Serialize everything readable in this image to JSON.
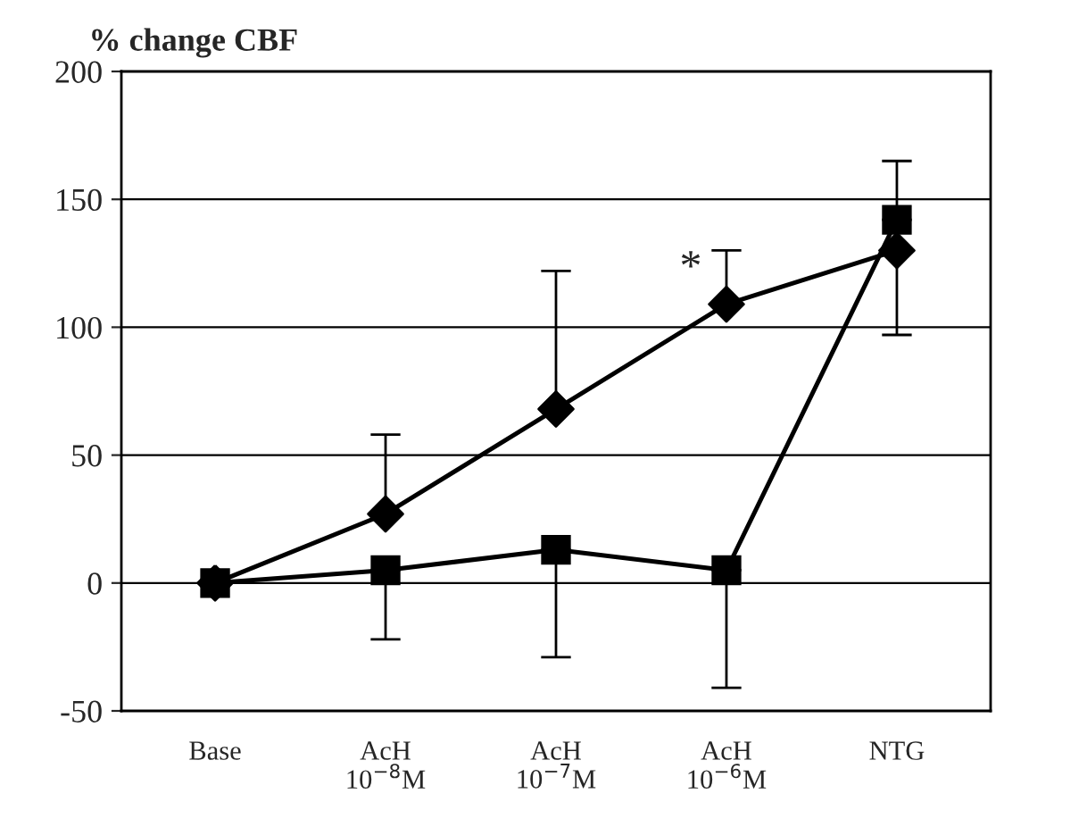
{
  "chart_data": {
    "type": "line",
    "title": "% change CBF",
    "categories": [
      "Base",
      "AcH\n10$^{−8}$M",
      "AcH\n10$^{−7}$M",
      "AcH\n10$^{−6}$M",
      "NTG"
    ],
    "series": [
      {
        "color": "#000000",
        "marker": "diamond",
        "values": [
          0,
          27,
          68,
          109,
          130
        ],
        "errors": [
          null,
          [
            27,
            58
          ],
          [
            68,
            122
          ],
          [
            109,
            130
          ],
          [
            97,
            130
          ]
        ]
      },
      {
        "color": "#000000",
        "marker": "square",
        "values": [
          0,
          5,
          13,
          5,
          142
        ],
        "errors": [
          null,
          [
            -22,
            5
          ],
          [
            -29,
            13
          ],
          [
            -41,
            5
          ],
          [
            142,
            165
          ]
        ]
      }
    ],
    "ylim": [
      -50,
      200
    ],
    "yticks": [
      -50,
      0,
      50,
      100,
      150,
      200
    ],
    "grid": "y",
    "legend": false,
    "annotations": [
      "*"
    ]
  }
}
